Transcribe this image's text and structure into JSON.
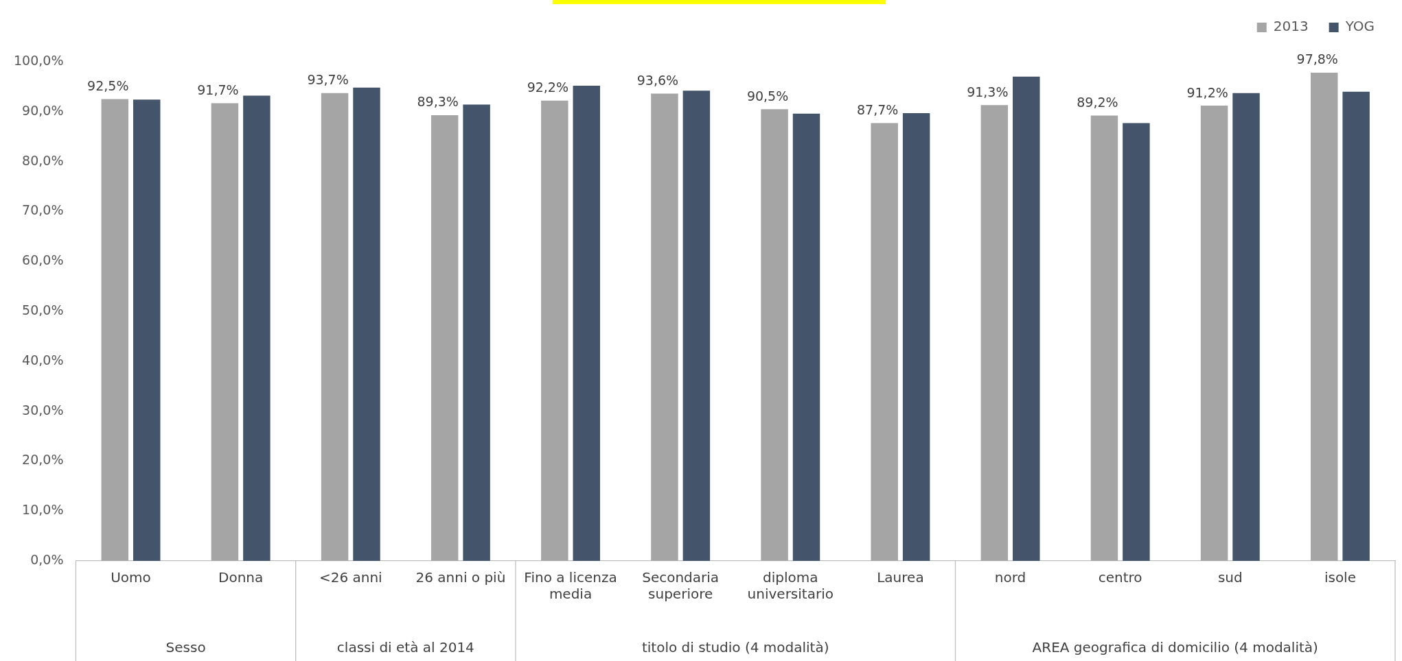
{
  "chart_data": {
    "type": "bar",
    "categories": [
      "Uomo",
      "Donna",
      "<26 anni",
      "26 anni o più",
      "Fino a licenza media",
      "Secondaria superiore",
      "diploma universitario",
      "Laurea",
      "nord",
      "centro",
      "sud",
      "isole"
    ],
    "series": [
      {
        "name": "2013",
        "color": "#a5a5a5",
        "values": [
          92.5,
          91.7,
          93.7,
          89.3,
          92.2,
          93.6,
          90.5,
          87.7,
          91.3,
          89.2,
          91.2,
          97.8
        ],
        "value_labels": [
          "92,5%",
          "91,7%",
          "93,7%",
          "89,3%",
          "92,2%",
          "93,6%",
          "90,5%",
          "87,7%",
          "91,3%",
          "89,2%",
          "91,2%",
          "97,8%"
        ]
      },
      {
        "name": "YOG",
        "color": "#44546a",
        "values": [
          92.4,
          93.2,
          94.8,
          91.4,
          95.2,
          94.2,
          89.6,
          89.7,
          97.0,
          87.7,
          93.7,
          94.0
        ]
      }
    ],
    "ylim": [
      0,
      100
    ],
    "yticks": [
      {
        "value": 0,
        "label": "0,0%"
      },
      {
        "value": 10,
        "label": "10,0%"
      },
      {
        "value": 20,
        "label": "20,0%"
      },
      {
        "value": 30,
        "label": "30,0%"
      },
      {
        "value": 40,
        "label": "40,0%"
      },
      {
        "value": 50,
        "label": "50,0%"
      },
      {
        "value": 60,
        "label": "60,0%"
      },
      {
        "value": 70,
        "label": "70,0%"
      },
      {
        "value": 80,
        "label": "80,0%"
      },
      {
        "value": 90,
        "label": "90,0%"
      },
      {
        "value": 100,
        "label": "100,0%"
      }
    ],
    "grid": false,
    "legend": "top right",
    "annotations": [
      "Sesso",
      "classi di età al 2014",
      "titolo di studio (4 modalità)",
      "AREA geografica di domicilio (4 modalità)"
    ]
  }
}
